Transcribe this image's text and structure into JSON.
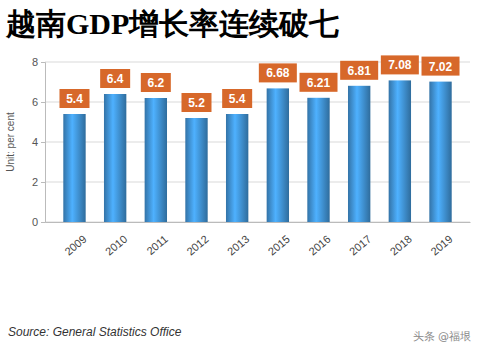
{
  "chart_data": {
    "type": "bar",
    "title": "越南GDP增长率连续破七",
    "y_label": "Unit: per cent",
    "categories": [
      "2009",
      "2010",
      "2011",
      "2012",
      "2013",
      "2015",
      "2016",
      "2017",
      "2018",
      "2019"
    ],
    "values": [
      5.4,
      6.4,
      6.2,
      5.2,
      5.4,
      6.68,
      6.21,
      6.81,
      7.08,
      7.02
    ],
    "color": "#3f8fcf",
    "ylim": [
      0,
      8
    ],
    "yticks": [
      0,
      2,
      4,
      6,
      8
    ],
    "grid": true,
    "data_labels": true,
    "annotations": [
      "Source: General Statistics Office",
      "头条 @福垠"
    ]
  }
}
